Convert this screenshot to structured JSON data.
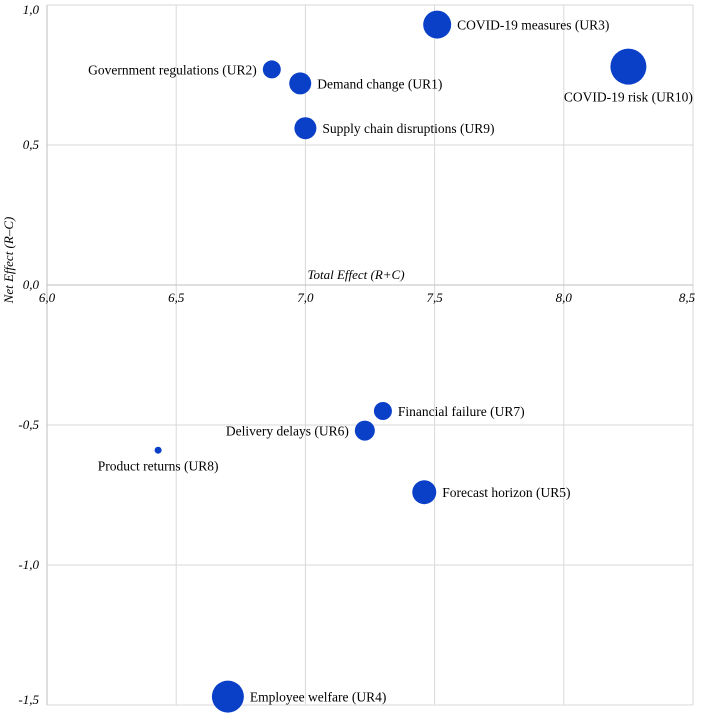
{
  "chart_data": {
    "type": "scatter",
    "title": "",
    "xlabel": "Total Effect (R+C)",
    "ylabel": "Net Effect (R–C)",
    "xlim": [
      6.0,
      8.5
    ],
    "ylim": [
      -1.5,
      1.0
    ],
    "x_ticks": [
      "6,0",
      "6,5",
      "7,0",
      "7,5",
      "8,0",
      "8,5"
    ],
    "y_ticks": [
      "1,0",
      "0,5",
      "0,0",
      "-0,5",
      "-1,0",
      "-1,5"
    ],
    "grid": true,
    "marker_color": "#0a3fc8",
    "points": [
      {
        "label": "Government regulations (UR2)",
        "x": 6.87,
        "y": 0.77,
        "size": 9,
        "label_side": "left"
      },
      {
        "label": "Demand change (UR1)",
        "x": 6.98,
        "y": 0.72,
        "size": 11,
        "label_side": "right"
      },
      {
        "label": "COVID-19 measures (UR3)",
        "x": 7.51,
        "y": 0.93,
        "size": 14,
        "label_side": "right"
      },
      {
        "label": "COVID-19 risk (UR10)",
        "x": 8.25,
        "y": 0.78,
        "size": 18,
        "label_side": "below"
      },
      {
        "label": "Supply chain disruptions (UR9)",
        "x": 7.0,
        "y": 0.56,
        "size": 11,
        "label_side": "right"
      },
      {
        "label": "Financial failure (UR7)",
        "x": 7.3,
        "y": -0.45,
        "size": 9,
        "label_side": "right"
      },
      {
        "label": "Delivery delays (UR6)",
        "x": 7.23,
        "y": -0.52,
        "size": 10,
        "label_side": "left"
      },
      {
        "label": "Product returns (UR8)",
        "x": 6.43,
        "y": -0.59,
        "size": 3.5,
        "label_side": "below"
      },
      {
        "label": "Forecast horizon (UR5)",
        "x": 7.46,
        "y": -0.74,
        "size": 12,
        "label_side": "right"
      },
      {
        "label": "Employee welfare (UR4)",
        "x": 6.7,
        "y": -1.47,
        "size": 16,
        "label_side": "right"
      }
    ]
  }
}
